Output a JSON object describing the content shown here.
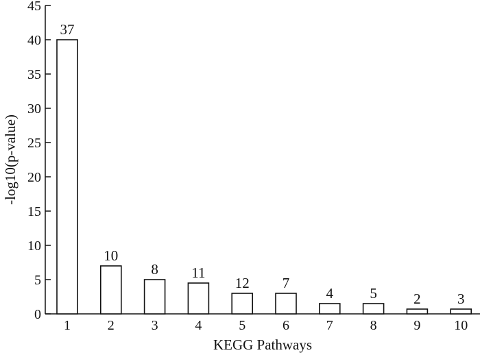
{
  "chart_data": {
    "type": "bar",
    "xlabel": "KEGG Pathways",
    "ylabel": "-log10(p-value)",
    "ylim": [
      0,
      45
    ],
    "y_ticks": [
      0,
      5,
      10,
      15,
      20,
      25,
      30,
      35,
      40,
      45
    ],
    "grid": false,
    "categories": [
      "1",
      "2",
      "3",
      "4",
      "5",
      "6",
      "7",
      "8",
      "9",
      "10"
    ],
    "values": [
      40,
      7,
      5,
      4.5,
      3,
      3,
      1.5,
      1.5,
      0.7,
      0.7
    ],
    "bar_labels": [
      "37",
      "10",
      "8",
      "11",
      "12",
      "7",
      "4",
      "5",
      "2",
      "3"
    ],
    "colors": {
      "bar_fill": "#ffffff",
      "bar_stroke": "#111111",
      "axis": "#111111"
    }
  }
}
